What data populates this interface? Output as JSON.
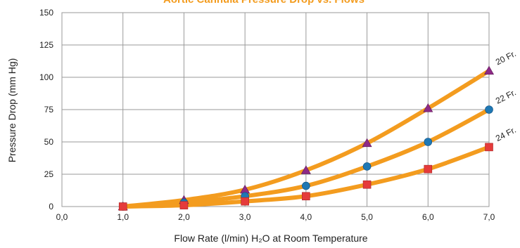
{
  "chart_data": {
    "type": "line",
    "title": "Aortic Cannula Pressure Drop vs. Flows",
    "xlabel": "Flow Rate (l/min) H₂O at Room Temperature",
    "ylabel": "Pressure Drop (mm Hg)",
    "xlim": [
      0,
      7
    ],
    "ylim": [
      0,
      150
    ],
    "x_ticks": [
      "0,0",
      "1,0",
      "2,0",
      "3,0",
      "4,0",
      "5,0",
      "6,0",
      "7,0"
    ],
    "y_ticks": [
      "0",
      "25",
      "50",
      "75",
      "100",
      "125",
      "150"
    ],
    "grid": true,
    "line_color": "#f39c1f",
    "series": [
      {
        "name": "20 Fr.",
        "marker": "triangle",
        "marker_color": "#8e2a86",
        "x": [
          1,
          2,
          3,
          4,
          5,
          6,
          7
        ],
        "y": [
          0,
          5,
          13,
          28,
          49,
          76,
          105
        ]
      },
      {
        "name": "22 Fr.",
        "marker": "circle",
        "marker_color": "#1f78b4",
        "x": [
          1,
          2,
          3,
          4,
          5,
          6,
          7
        ],
        "y": [
          0,
          3,
          8,
          16,
          31,
          50,
          75
        ]
      },
      {
        "name": "24 Fr.",
        "marker": "square",
        "marker_color": "#e53b3b",
        "x": [
          1,
          2,
          3,
          4,
          5,
          6,
          7
        ],
        "y": [
          0,
          1,
          4,
          8,
          17,
          29,
          46
        ]
      }
    ]
  }
}
